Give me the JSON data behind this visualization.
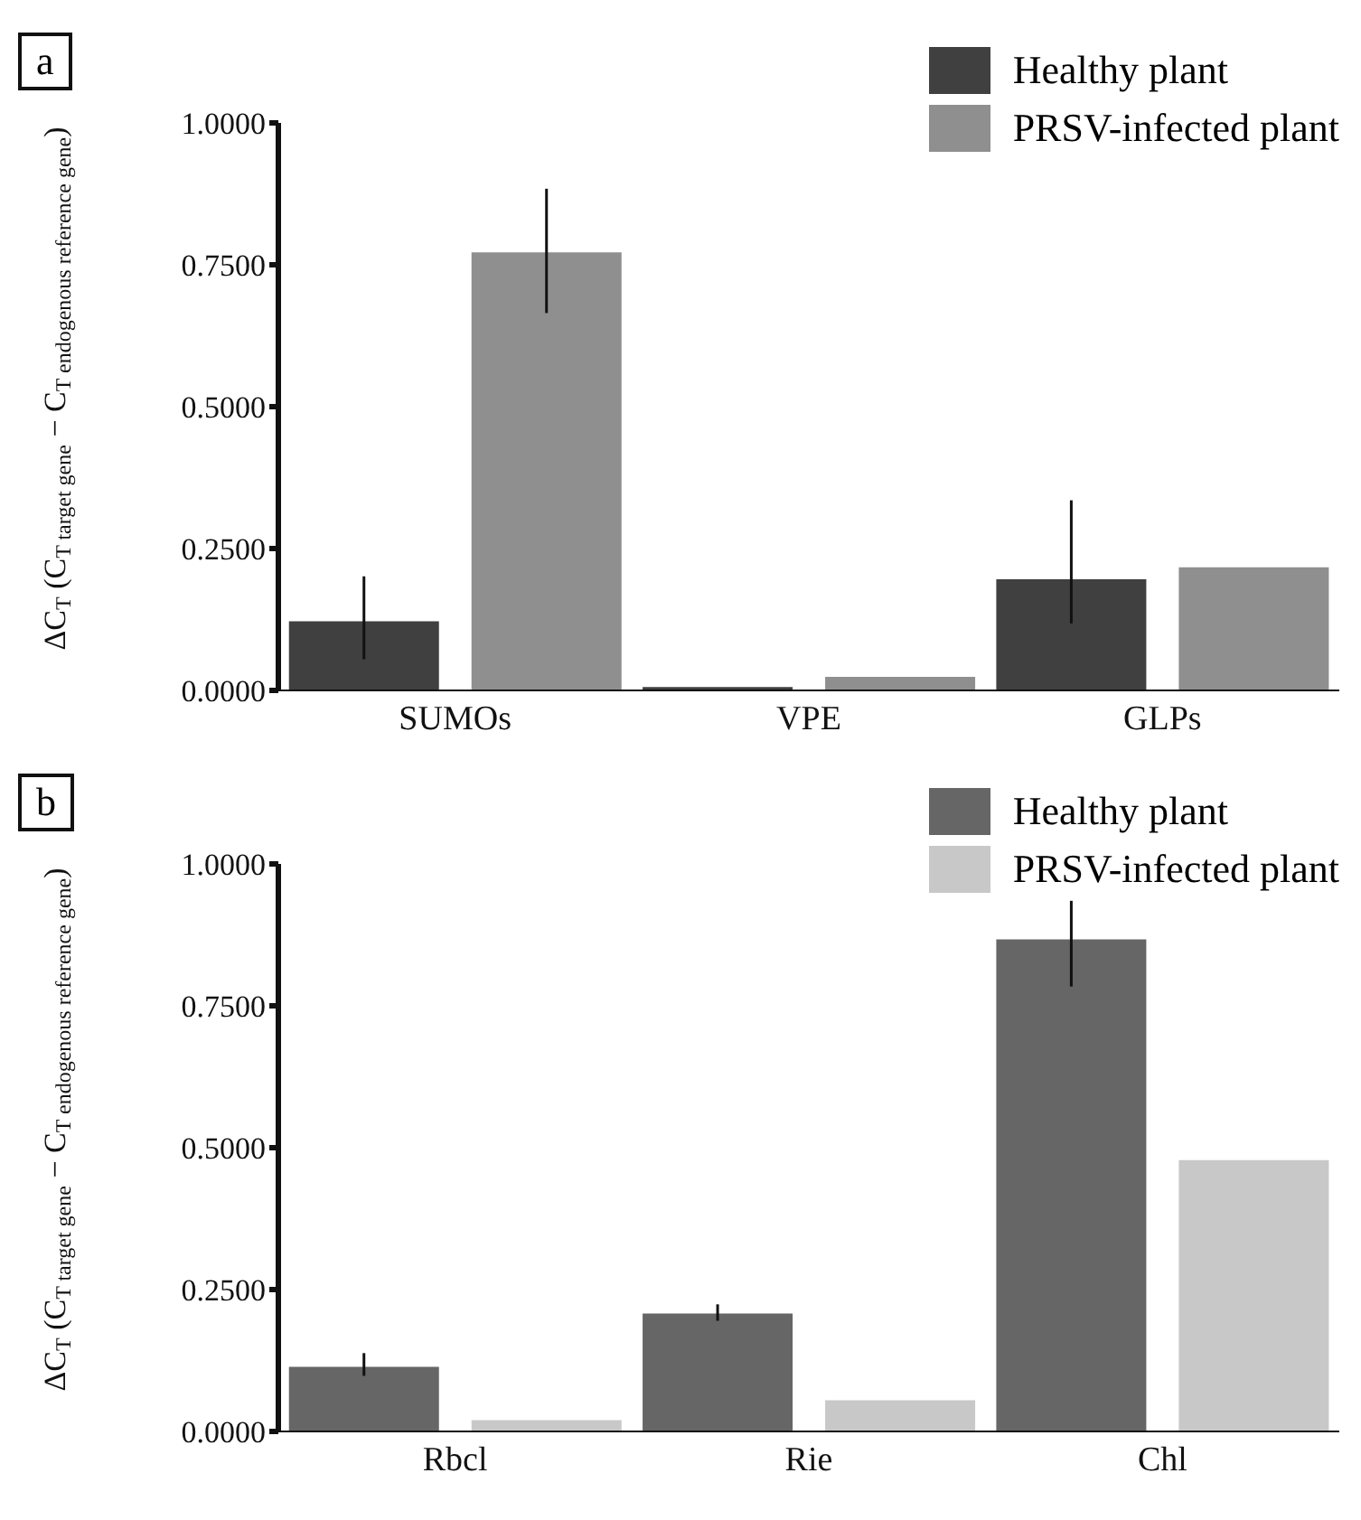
{
  "chart_data": [
    {
      "type": "bar",
      "title": "a",
      "ylabel": "ΔC$_{T}$ (C$_{T target gene}$ − C$_{T endogenous reference gene}$)",
      "categories": [
        "SUMOs",
        "VPE",
        "GLPs"
      ],
      "series": [
        {
          "name": "Healthy plant",
          "color": "#404040",
          "values": [
            0.122,
            0.006,
            0.196
          ],
          "errors": [
            [
              0.055,
              0.201
            ],
            null,
            [
              0.118,
              0.335
            ]
          ]
        },
        {
          "name": "PRSV-infected plant",
          "color": "#8f8f8f",
          "values": [
            0.772,
            0.024,
            0.217
          ],
          "errors": [
            [
              0.665,
              0.884
            ],
            null,
            null
          ]
        }
      ],
      "ylim": [
        0,
        1
      ],
      "yticks": [
        {
          "value": 0,
          "label": "0.0000"
        },
        {
          "value": 0.25,
          "label": "0.2500"
        },
        {
          "value": 0.5,
          "label": "0.5000"
        },
        {
          "value": 0.75,
          "label": "0.7500"
        },
        {
          "value": 1,
          "label": "1.0000"
        }
      ],
      "grid": false,
      "legend": "top right"
    },
    {
      "type": "bar",
      "title": "b",
      "ylabel": "ΔC$_{T}$ (C$_{T target gene}$ − C$_{T endogenous reference gene}$)",
      "categories": [
        "Rbcl",
        "Rie",
        "Chl"
      ],
      "series": [
        {
          "name": "Healthy plant",
          "color": "#666666",
          "values": [
            0.114,
            0.208,
            0.867
          ],
          "errors": [
            [
              0.098,
              0.138
            ],
            [
              0.195,
              0.224
            ],
            [
              0.784,
              0.935
            ]
          ]
        },
        {
          "name": "PRSV-infected plant",
          "color": "#c8c8c8",
          "values": [
            0.02,
            0.055,
            0.478
          ],
          "errors": [
            null,
            null,
            null
          ]
        }
      ],
      "ylim": [
        0,
        1
      ],
      "yticks": [
        {
          "value": 0,
          "label": "0.0000"
        },
        {
          "value": 0.25,
          "label": "0.2500"
        },
        {
          "value": 0.5,
          "label": "0.5000"
        },
        {
          "value": 0.75,
          "label": "0.7500"
        },
        {
          "value": 1,
          "label": "1.0000"
        }
      ],
      "grid": false,
      "legend": "top right"
    }
  ]
}
